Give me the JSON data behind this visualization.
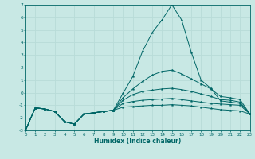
{
  "xlabel": "Humidex (Indice chaleur)",
  "bg_color": "#c8e8e4",
  "line_color": "#006666",
  "grid_color": "#b8dcd8",
  "xlim": [
    0,
    23
  ],
  "ylim": [
    -3,
    7
  ],
  "yticks": [
    -3,
    -2,
    -1,
    0,
    1,
    2,
    3,
    4,
    5,
    6,
    7
  ],
  "xticks": [
    0,
    1,
    2,
    3,
    4,
    5,
    6,
    7,
    8,
    9,
    10,
    11,
    12,
    13,
    14,
    15,
    16,
    17,
    18,
    19,
    20,
    21,
    22,
    23
  ],
  "lines": [
    {
      "y": [
        -3.0,
        -1.2,
        -1.3,
        -1.5,
        -2.3,
        -2.5,
        -1.7,
        -1.6,
        -1.5,
        -1.4,
        -0.05,
        1.3,
        3.3,
        4.8,
        5.8,
        7.0,
        5.8,
        3.2,
        1.0,
        0.35,
        -0.65,
        -0.75,
        -0.85,
        -1.7
      ]
    },
    {
      "y": [
        -3.0,
        -1.2,
        -1.3,
        -1.5,
        -2.3,
        -2.5,
        -1.7,
        -1.6,
        -1.5,
        -1.4,
        -0.4,
        0.3,
        0.9,
        1.4,
        1.7,
        1.8,
        1.5,
        1.1,
        0.7,
        0.3,
        -0.3,
        -0.4,
        -0.55,
        -1.7
      ]
    },
    {
      "y": [
        -3.0,
        -1.2,
        -1.3,
        -1.5,
        -2.3,
        -2.5,
        -1.7,
        -1.6,
        -1.5,
        -1.4,
        -0.6,
        -0.15,
        0.1,
        0.2,
        0.3,
        0.35,
        0.25,
        0.1,
        -0.1,
        -0.3,
        -0.55,
        -0.6,
        -0.75,
        -1.7
      ]
    },
    {
      "y": [
        -3.0,
        -1.2,
        -1.3,
        -1.5,
        -2.3,
        -2.5,
        -1.7,
        -1.6,
        -1.5,
        -1.4,
        -0.85,
        -0.7,
        -0.6,
        -0.55,
        -0.5,
        -0.45,
        -0.55,
        -0.65,
        -0.75,
        -0.85,
        -0.9,
        -0.95,
        -1.0,
        -1.7
      ]
    },
    {
      "y": [
        -3.0,
        -1.2,
        -1.3,
        -1.5,
        -2.3,
        -2.5,
        -1.7,
        -1.6,
        -1.5,
        -1.4,
        -1.15,
        -1.1,
        -1.05,
        -1.0,
        -1.0,
        -0.95,
        -1.0,
        -1.05,
        -1.15,
        -1.25,
        -1.35,
        -1.4,
        -1.45,
        -1.7
      ]
    }
  ]
}
